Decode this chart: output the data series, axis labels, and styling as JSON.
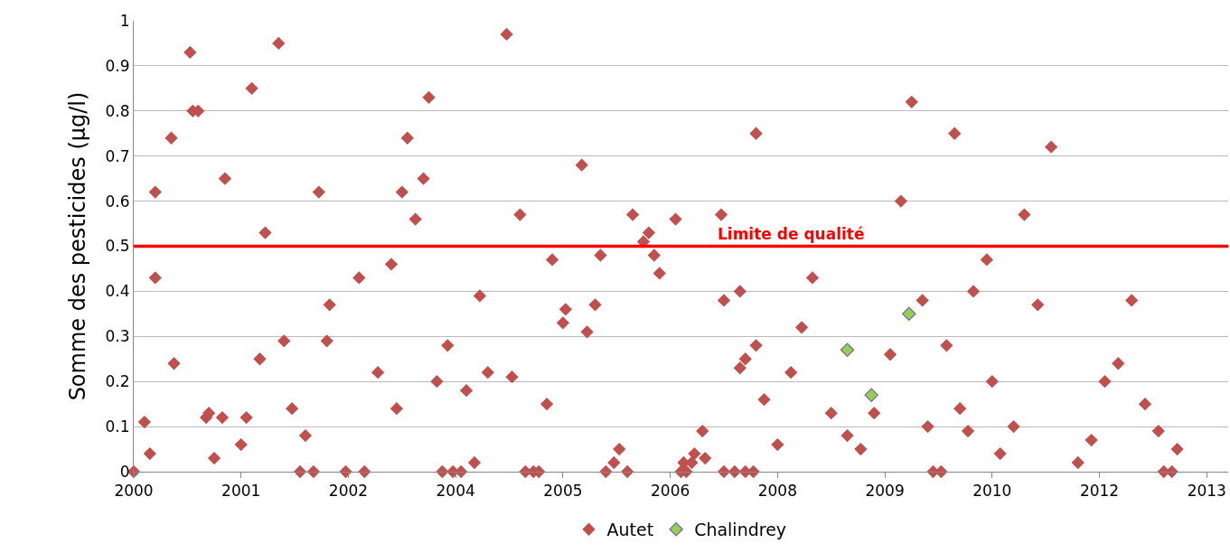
{
  "chart_data": {
    "type": "scatter",
    "ylabel": "Somme des pesticides (µg/l)",
    "categories": [
      "2000",
      null,
      null,
      null,
      null,
      null,
      null,
      null,
      null,
      null,
      null,
      null,
      null,
      null,
      null,
      null,
      null,
      null,
      null,
      null,
      null,
      null,
      null,
      null,
      null,
      null,
      null,
      null,
      null,
      null,
      null,
      null,
      null,
      null,
      null,
      null,
      null,
      null,
      null,
      null,
      "2001",
      null,
      null,
      null,
      null,
      null,
      null,
      null,
      null,
      null,
      null,
      null,
      null,
      null,
      null,
      null,
      null,
      null,
      null,
      null,
      null,
      null,
      null,
      null,
      null,
      null,
      null,
      null,
      null,
      null,
      null,
      null,
      null,
      null,
      null,
      null,
      null,
      null,
      null,
      null,
      "2002",
      null,
      null,
      null,
      null,
      null,
      null,
      null,
      null,
      null,
      null,
      null,
      null,
      null,
      null,
      null,
      null,
      null,
      null,
      null,
      null,
      null,
      null,
      null,
      null,
      null,
      null,
      null,
      null,
      null,
      null,
      null,
      null,
      null,
      null,
      null,
      null,
      null,
      null,
      null,
      "2004",
      null,
      null,
      null,
      null,
      null,
      null,
      null,
      null,
      null,
      null,
      null,
      null,
      null,
      null,
      null,
      null,
      null,
      null,
      null,
      null,
      null,
      null,
      null,
      null,
      null,
      null,
      null,
      null,
      null,
      null,
      null,
      null,
      null,
      null,
      null,
      null,
      null,
      null,
      null,
      "2005",
      null,
      null,
      null,
      null,
      null,
      null,
      null,
      null,
      null,
      null,
      null,
      null,
      null,
      null,
      null,
      null,
      null,
      null,
      null,
      null,
      null,
      null,
      null,
      null,
      null,
      null,
      null,
      null,
      null,
      null,
      null,
      null,
      null,
      null,
      null,
      null,
      null,
      null,
      null,
      "2006",
      null,
      null,
      null,
      null,
      null,
      null,
      null,
      null,
      null,
      null,
      null,
      null,
      null,
      null,
      null,
      null,
      null,
      null,
      null,
      null,
      null,
      null,
      null,
      null,
      null,
      null,
      null,
      null,
      null,
      null,
      null,
      null,
      null,
      null,
      null,
      null,
      null,
      null,
      null,
      "2008",
      null,
      null,
      null,
      null,
      null,
      null,
      null,
      null,
      null,
      null,
      null,
      null,
      null,
      null,
      null,
      null,
      null,
      null,
      null,
      null,
      null,
      null,
      null,
      null,
      null,
      null,
      null,
      null,
      null,
      null,
      null,
      null,
      null,
      null,
      null,
      null,
      null,
      null,
      null,
      "2009",
      null,
      null,
      null,
      null,
      null,
      null,
      null,
      null,
      null,
      null,
      null,
      null,
      null,
      null,
      null,
      null,
      null,
      null,
      null,
      null,
      null,
      null,
      null,
      null,
      null,
      null,
      null,
      null,
      null,
      null,
      null,
      null,
      null,
      null,
      null,
      null,
      null,
      null,
      null,
      "2010",
      null,
      null,
      null,
      null,
      null,
      null,
      null,
      null,
      null,
      null,
      null,
      null,
      null,
      null,
      null,
      null,
      null,
      null,
      null,
      null,
      null,
      null,
      null,
      null,
      null,
      null,
      null,
      null,
      null,
      null,
      null,
      null,
      null,
      null,
      null,
      null,
      null,
      null,
      null,
      "2012",
      null,
      null,
      null,
      null,
      null,
      null,
      null,
      null,
      null,
      null,
      null,
      null,
      null,
      null,
      null,
      null,
      null,
      null,
      null,
      null,
      null,
      null,
      null,
      null,
      null,
      null,
      null,
      null,
      null,
      null,
      null,
      null,
      null,
      null,
      null,
      null,
      null,
      null,
      null,
      "2013",
      null,
      null,
      null,
      null,
      null,
      null,
      null,
      null
    ],
    "ylim": [
      0,
      1
    ],
    "yticks": [
      0,
      0.1,
      0.2,
      0.3,
      0.4,
      0.5,
      0.6,
      0.7,
      0.8,
      0.9,
      1
    ],
    "grid": "y",
    "legend": "bottom",
    "marker": "diamond",
    "ref_lines": [
      {
        "axis": "y",
        "value": 0.5,
        "label": "Limite de qualité",
        "color": "#ff0000",
        "line_style": "solid"
      }
    ],
    "series": [
      {
        "name": "Autet",
        "color": "#c0504d",
        "values": [
          0,
          null,
          null,
          null,
          0.11,
          null,
          0.04,
          null,
          0.62,
          null,
          null,
          null,
          null,
          null,
          0.74,
          0.24,
          null,
          null,
          null,
          null,
          null,
          0.93,
          0.8,
          null,
          0.8,
          null,
          null,
          0.12,
          0.13,
          null,
          0.03,
          null,
          null,
          0.12,
          0.65,
          null,
          null,
          null,
          null,
          null,
          0.06,
          null,
          0.12,
          null,
          0.85,
          null,
          null,
          0.25,
          null,
          0.53,
          null,
          null,
          null,
          null,
          0.95,
          null,
          0.29,
          null,
          null,
          0.14,
          null,
          null,
          0,
          null,
          0.08,
          null,
          null,
          0,
          null,
          0.62,
          null,
          null,
          0.29,
          0.37,
          null,
          null,
          null,
          null,
          null,
          0,
          null,
          null,
          null,
          null,
          0.43,
          null,
          0,
          null,
          null,
          null,
          null,
          0.22,
          null,
          null,
          null,
          null,
          0.46,
          null,
          0.14,
          null,
          0.62,
          null,
          0.74,
          null,
          null,
          0.56,
          null,
          null,
          0.65,
          null,
          0.83,
          null,
          null,
          0.2,
          null,
          0,
          null,
          0.28,
          null,
          0,
          null,
          null,
          0,
          null,
          0.18,
          null,
          null,
          0.02,
          null,
          0.39,
          null,
          null,
          0.22,
          null,
          null,
          null,
          null,
          null,
          null,
          0.97,
          null,
          0.21,
          null,
          null,
          0.57,
          null,
          0,
          null,
          null,
          0,
          null,
          0,
          null,
          null,
          0.15,
          null,
          0.47,
          null,
          null,
          null,
          0.33,
          0.36,
          null,
          null,
          null,
          null,
          null,
          0.68,
          null,
          0.31,
          null,
          null,
          0.37,
          null,
          0.48,
          null,
          0,
          null,
          null,
          0.02,
          null,
          0.05,
          null,
          null,
          0,
          null,
          0.57,
          null,
          null,
          null,
          0.51,
          null,
          0.53,
          null,
          0.48,
          null,
          0.44,
          null,
          null,
          null,
          null,
          null,
          0.56,
          null,
          0,
          0.02,
          0,
          null,
          0.02,
          0.04,
          null,
          null,
          0.09,
          0.03,
          null,
          null,
          null,
          null,
          null,
          0.57,
          0.38,
          null,
          null,
          null,
          0,
          null,
          0.4,
          null,
          0.25,
          null,
          null,
          0,
          0.75,
          null,
          null,
          0.16,
          null,
          null,
          null,
          null,
          0.06,
          null,
          null,
          null,
          null,
          0.22,
          null,
          null,
          null,
          0.32,
          null,
          null,
          null,
          0.43,
          null,
          null,
          null,
          null,
          null,
          null,
          0.13,
          null,
          null,
          null,
          null,
          null,
          0.08,
          null,
          null,
          null,
          null,
          0.05,
          null,
          null,
          null,
          null,
          0.13,
          null,
          null,
          null,
          null,
          null,
          0.26,
          null,
          null,
          null,
          0.6,
          null,
          null,
          null,
          0.82,
          null,
          null,
          null,
          0.38,
          null,
          0.1,
          null,
          0,
          null,
          null,
          0,
          null,
          0.28,
          null,
          null,
          0.75,
          null,
          0.14,
          null,
          null,
          0.09,
          null,
          0.4,
          null,
          null,
          null,
          null,
          0.47,
          null,
          0.2,
          null,
          null,
          0.04,
          null,
          null,
          null,
          null,
          0.1,
          null,
          null,
          null,
          0.57,
          null,
          null,
          null,
          null,
          0.37,
          null,
          null,
          null,
          null,
          0.72,
          null,
          null,
          null,
          null,
          null,
          null,
          null,
          null,
          null,
          0.02,
          null,
          null,
          null,
          null,
          0.07,
          null,
          null,
          null,
          null,
          0.2,
          null,
          null,
          null,
          null,
          0.24,
          null,
          null,
          null,
          null,
          0.38,
          null,
          null,
          null,
          null,
          0.15,
          null,
          null,
          null,
          null,
          0.09,
          null,
          0,
          null,
          null,
          0,
          null,
          0.05,
          null,
          null,
          null,
          null,
          null,
          null,
          null,
          null,
          null,
          null,
          null,
          null,
          null,
          null,
          null,
          null,
          null,
          null,
          null
        ]
      },
      {
        "color": "#c0504d",
        "values": [
          null,
          null,
          null,
          null,
          null,
          null,
          null,
          null,
          0.43,
          null,
          null,
          null,
          null,
          null,
          null,
          null,
          null,
          null,
          null,
          null,
          null,
          null,
          null,
          null,
          null,
          null,
          null,
          null,
          null,
          null,
          null,
          null,
          null,
          null,
          null,
          null,
          null,
          null,
          null,
          null,
          null,
          null,
          null,
          null,
          null,
          null,
          null,
          null,
          null,
          null,
          null,
          null,
          null,
          null,
          null,
          null,
          null,
          null,
          null,
          null,
          null,
          null,
          null,
          null,
          null,
          null,
          null,
          null,
          null,
          null,
          null,
          null,
          null,
          null,
          null,
          null,
          null,
          null,
          null,
          null,
          null,
          null,
          null,
          null,
          null,
          null,
          null,
          null,
          null,
          null,
          null,
          null,
          null,
          null,
          null,
          null,
          null,
          null,
          null,
          null,
          null,
          null,
          null,
          null,
          null,
          null,
          null,
          null,
          null,
          null,
          null,
          null,
          null,
          null,
          null,
          null,
          null,
          null,
          null,
          null,
          null,
          null,
          null,
          null,
          null,
          null,
          null,
          null,
          null,
          null,
          null,
          null,
          null,
          null,
          null,
          null,
          null,
          null,
          null,
          null,
          null,
          null,
          null,
          null,
          null,
          null,
          null,
          null,
          null,
          null,
          null,
          null,
          null,
          null,
          null,
          null,
          null,
          null,
          null,
          null,
          null,
          null,
          null,
          null,
          null,
          null,
          null,
          null,
          null,
          null,
          null,
          null,
          null,
          null,
          null,
          null,
          null,
          null,
          null,
          null,
          null,
          null,
          null,
          null,
          null,
          null,
          null,
          null,
          null,
          null,
          null,
          null,
          null,
          null,
          null,
          null,
          null,
          null,
          null,
          null,
          null,
          null,
          null,
          null,
          null,
          null,
          null,
          null,
          null,
          null,
          null,
          null,
          null,
          null,
          null,
          null,
          null,
          null,
          null,
          null,
          0,
          null,
          null,
          null,
          null,
          null,
          0.23,
          null,
          0,
          null,
          null,
          null,
          0.28,
          null,
          null,
          null,
          null,
          null,
          null,
          null,
          null,
          null,
          null,
          null,
          null,
          null,
          null,
          null,
          null,
          null,
          null,
          null,
          null,
          null,
          null,
          null,
          null,
          null,
          null,
          null,
          null,
          null,
          null,
          null,
          null,
          null,
          null,
          null,
          null,
          null,
          null,
          null,
          null,
          null,
          null,
          null,
          null,
          null,
          null,
          null,
          null,
          null,
          null,
          null,
          null,
          null,
          null,
          null,
          null,
          null,
          null,
          null,
          null,
          null,
          null,
          null,
          null,
          null,
          null,
          null,
          null,
          null,
          null,
          null,
          null,
          null,
          null,
          null,
          null,
          null,
          null,
          null,
          null,
          null,
          null,
          null,
          null,
          null,
          null,
          null,
          null,
          null,
          null,
          null,
          null,
          null,
          null,
          null,
          null,
          null,
          null,
          null,
          null,
          null,
          null,
          null,
          null,
          null,
          null,
          null,
          null,
          null,
          null,
          null,
          null,
          null,
          null,
          null,
          null,
          null,
          null,
          null,
          null,
          null,
          null,
          null,
          null,
          null,
          null,
          null,
          null,
          null,
          null,
          null,
          null,
          null,
          null,
          null,
          null,
          null,
          null,
          null,
          null,
          null,
          null,
          null,
          null,
          null,
          null,
          null,
          null,
          null,
          null,
          null,
          null,
          null,
          null,
          null,
          null,
          null,
          null,
          null,
          null,
          null,
          null,
          null,
          null,
          null,
          null,
          null,
          null,
          null,
          null,
          null,
          null,
          null,
          null,
          null,
          null
        ]
      },
      {
        "name": "Chalindrey",
        "color": "#92d050",
        "values": [
          null,
          null,
          null,
          null,
          null,
          null,
          null,
          null,
          null,
          null,
          null,
          null,
          null,
          null,
          null,
          null,
          null,
          null,
          null,
          null,
          null,
          null,
          null,
          null,
          null,
          null,
          null,
          null,
          null,
          null,
          null,
          null,
          null,
          null,
          null,
          null,
          null,
          null,
          null,
          null,
          null,
          null,
          null,
          null,
          null,
          null,
          null,
          null,
          null,
          null,
          null,
          null,
          null,
          null,
          null,
          null,
          null,
          null,
          null,
          null,
          null,
          null,
          null,
          null,
          null,
          null,
          null,
          null,
          null,
          null,
          null,
          null,
          null,
          null,
          null,
          null,
          null,
          null,
          null,
          null,
          null,
          null,
          null,
          null,
          null,
          null,
          null,
          null,
          null,
          null,
          null,
          null,
          null,
          null,
          null,
          null,
          null,
          null,
          null,
          null,
          null,
          null,
          null,
          null,
          null,
          null,
          null,
          null,
          null,
          null,
          null,
          null,
          null,
          null,
          null,
          null,
          null,
          null,
          null,
          null,
          null,
          null,
          null,
          null,
          null,
          null,
          null,
          null,
          null,
          null,
          null,
          null,
          null,
          null,
          null,
          null,
          null,
          null,
          null,
          null,
          null,
          null,
          null,
          null,
          null,
          null,
          null,
          null,
          null,
          null,
          null,
          null,
          null,
          null,
          null,
          null,
          null,
          null,
          null,
          null,
          null,
          null,
          null,
          null,
          null,
          null,
          null,
          null,
          null,
          null,
          null,
          null,
          null,
          null,
          null,
          null,
          null,
          null,
          null,
          null,
          null,
          null,
          null,
          null,
          null,
          null,
          null,
          null,
          null,
          null,
          null,
          null,
          null,
          null,
          null,
          null,
          null,
          null,
          null,
          null,
          null,
          null,
          null,
          null,
          null,
          null,
          null,
          null,
          null,
          null,
          null,
          null,
          null,
          null,
          null,
          null,
          null,
          null,
          null,
          null,
          null,
          null,
          null,
          null,
          null,
          null,
          null,
          null,
          null,
          null,
          null,
          null,
          null,
          null,
          null,
          null,
          null,
          null,
          null,
          null,
          null,
          null,
          null,
          null,
          null,
          null,
          null,
          null,
          null,
          null,
          null,
          null,
          null,
          null,
          null,
          null,
          null,
          null,
          null,
          null,
          null,
          null,
          null,
          null,
          null,
          null,
          0.27,
          null,
          null,
          null,
          null,
          null,
          null,
          null,
          null,
          0.17,
          null,
          null,
          null,
          null,
          null,
          null,
          null,
          null,
          null,
          null,
          null,
          null,
          null,
          0.35,
          null,
          null,
          null,
          null,
          null,
          null,
          null,
          null,
          null,
          null,
          null,
          null,
          null,
          null,
          null,
          null,
          null,
          null,
          null,
          null,
          null,
          null,
          null,
          null,
          null,
          null,
          null,
          null,
          null,
          null,
          null,
          null,
          null,
          null,
          null,
          null,
          null,
          null,
          null,
          null,
          null,
          null,
          null,
          null,
          null,
          null,
          null,
          null,
          null,
          null,
          null,
          null,
          null,
          null,
          null,
          null,
          null,
          null,
          null,
          null,
          null,
          null,
          null,
          null,
          null,
          null,
          null,
          null,
          null,
          null,
          null,
          null,
          null,
          null,
          null,
          null,
          null,
          null,
          null,
          null,
          null,
          null,
          null,
          null,
          null,
          null,
          null,
          null,
          null,
          null,
          null,
          null,
          null,
          null,
          null,
          null,
          null,
          null,
          null,
          null,
          null,
          null,
          null,
          null,
          null,
          null,
          null,
          null,
          null,
          null,
          null,
          null,
          null,
          null,
          null,
          null,
          null,
          null,
          null
        ]
      }
    ]
  }
}
